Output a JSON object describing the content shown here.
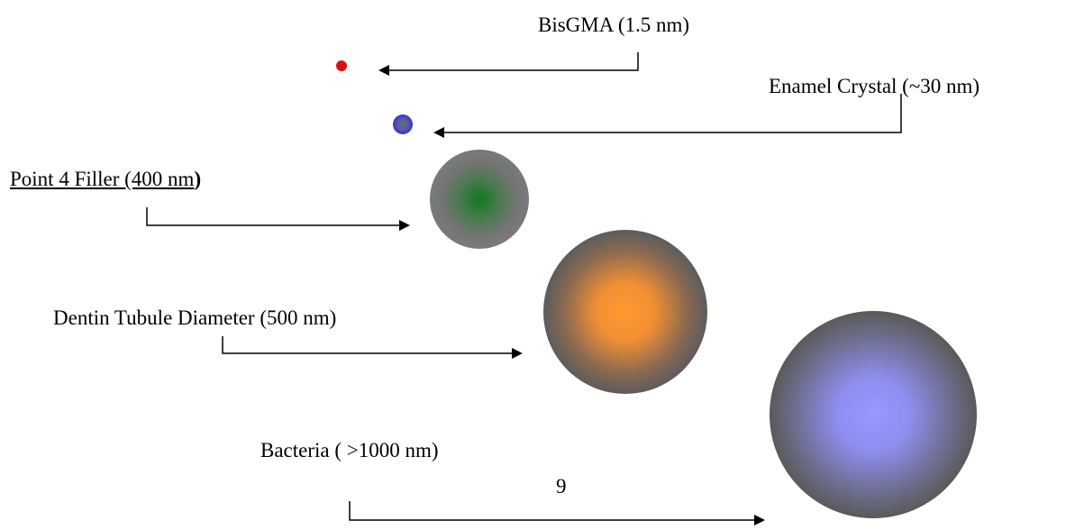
{
  "labels": {
    "bisgma": "BisGMA (1.5 nm)",
    "enamel": "Enamel Crystal (~30 nm)",
    "filler_main": "Point 4 Filler (400 nm",
    "filler_paren": ")",
    "dentin": "Dentin Tubule Diameter (500 nm)",
    "bacteria": "Bacteria ( >1000 nm)",
    "page_number": "9"
  },
  "colors": {
    "bisgma": "#e01010",
    "enamel_center": "#5a5a8a",
    "enamel_edge": "#3a3ad0",
    "filler_center": "#0e7a1e",
    "dentin_center": "#ff9a30",
    "bacteria_center": "#9a9aff",
    "sphere_edge": "#5a5a5a",
    "arrow": "#000000"
  }
}
